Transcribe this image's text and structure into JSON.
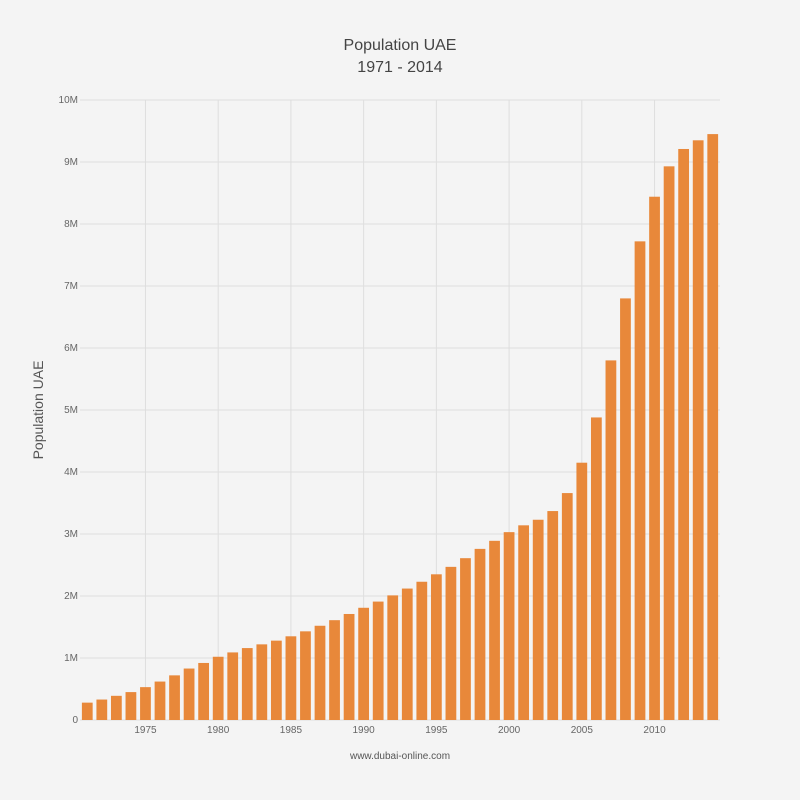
{
  "chart_data": {
    "type": "bar",
    "title": "Population UAE",
    "subtitle": "1971 - 2014",
    "xlabel": "",
    "ylabel": "Population UAE",
    "source": "www.dubai-online.com",
    "xlim": [
      1970.5,
      2014.5
    ],
    "ylim": [
      0,
      10000000
    ],
    "x_ticks": [
      1975,
      1980,
      1985,
      1990,
      1995,
      2000,
      2005,
      2010
    ],
    "x_tick_labels": [
      "1975",
      "1980",
      "1985",
      "1990",
      "1995",
      "2000",
      "2005",
      "2010"
    ],
    "y_ticks": [
      0,
      1000000,
      2000000,
      3000000,
      4000000,
      5000000,
      6000000,
      7000000,
      8000000,
      9000000,
      10000000
    ],
    "y_tick_labels": [
      "0",
      "1M",
      "2M",
      "3M",
      "4M",
      "5M",
      "6M",
      "7M",
      "8M",
      "9M",
      "10M"
    ],
    "grid": true,
    "bar_color": "#e8883a",
    "grid_color": "#dedede",
    "background_color": "#f4f4f4",
    "x": [
      1971,
      1972,
      1973,
      1974,
      1975,
      1976,
      1977,
      1978,
      1979,
      1980,
      1981,
      1982,
      1983,
      1984,
      1985,
      1986,
      1987,
      1988,
      1989,
      1990,
      1991,
      1992,
      1993,
      1994,
      1995,
      1996,
      1997,
      1998,
      1999,
      2000,
      2001,
      2002,
      2003,
      2004,
      2005,
      2006,
      2007,
      2008,
      2009,
      2010,
      2011,
      2012,
      2013,
      2014
    ],
    "values": [
      280000,
      330000,
      390000,
      450000,
      530000,
      620000,
      720000,
      830000,
      920000,
      1020000,
      1090000,
      1160000,
      1220000,
      1280000,
      1350000,
      1430000,
      1520000,
      1610000,
      1710000,
      1810000,
      1910000,
      2010000,
      2120000,
      2230000,
      2350000,
      2470000,
      2610000,
      2760000,
      2890000,
      3030000,
      3140000,
      3230000,
      3370000,
      3660000,
      4150000,
      4880000,
      5800000,
      6800000,
      7720000,
      8440000,
      8930000,
      9210000,
      9350000,
      9450000
    ]
  }
}
